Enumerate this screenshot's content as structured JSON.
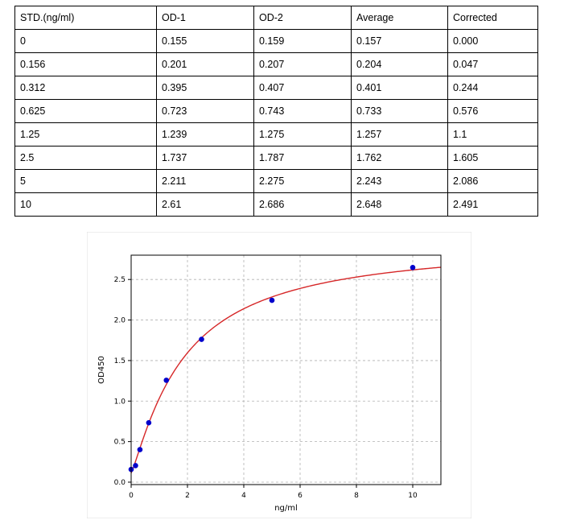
{
  "table": {
    "headers": [
      "STD.(ng/ml)",
      "OD-1",
      "OD-2",
      "Average",
      "Corrected"
    ],
    "rows": [
      [
        "0",
        "0.155",
        "0.159",
        "0.157",
        "0.000"
      ],
      [
        "0.156",
        "0.201",
        "0.207",
        "0.204",
        "0.047"
      ],
      [
        "0.312",
        "0.395",
        "0.407",
        "0.401",
        "0.244"
      ],
      [
        "0.625",
        "0.723",
        "0.743",
        "0.733",
        "0.576"
      ],
      [
        "1.25",
        "1.239",
        "1.275",
        "1.257",
        "1.1"
      ],
      [
        "2.5",
        "1.737",
        "1.787",
        "1.762",
        "1.605"
      ],
      [
        "5",
        "2.211",
        "2.275",
        "2.243",
        "2.086"
      ],
      [
        "10",
        "2.61",
        "2.686",
        "2.648",
        "2.491"
      ]
    ]
  },
  "chart_data": {
    "type": "scatter",
    "title": "",
    "xlabel": "ng/ml",
    "ylabel": "OD450",
    "xlim": [
      0,
      11
    ],
    "ylim": [
      -0.03,
      2.8
    ],
    "xticks": [
      "0",
      "2",
      "4",
      "6",
      "8",
      "10"
    ],
    "yticks": [
      "0.0",
      "0.5",
      "1.0",
      "1.5",
      "2.0",
      "2.5"
    ],
    "grid": true,
    "points": [
      {
        "x": 0,
        "y": 0.157
      },
      {
        "x": 0.156,
        "y": 0.204
      },
      {
        "x": 0.312,
        "y": 0.401
      },
      {
        "x": 0.625,
        "y": 0.733
      },
      {
        "x": 1.25,
        "y": 1.257
      },
      {
        "x": 2.5,
        "y": 1.762
      },
      {
        "x": 5,
        "y": 2.243
      },
      {
        "x": 10,
        "y": 2.648
      }
    ],
    "point_color": "#0000cc",
    "fit_color": "#d62728"
  }
}
